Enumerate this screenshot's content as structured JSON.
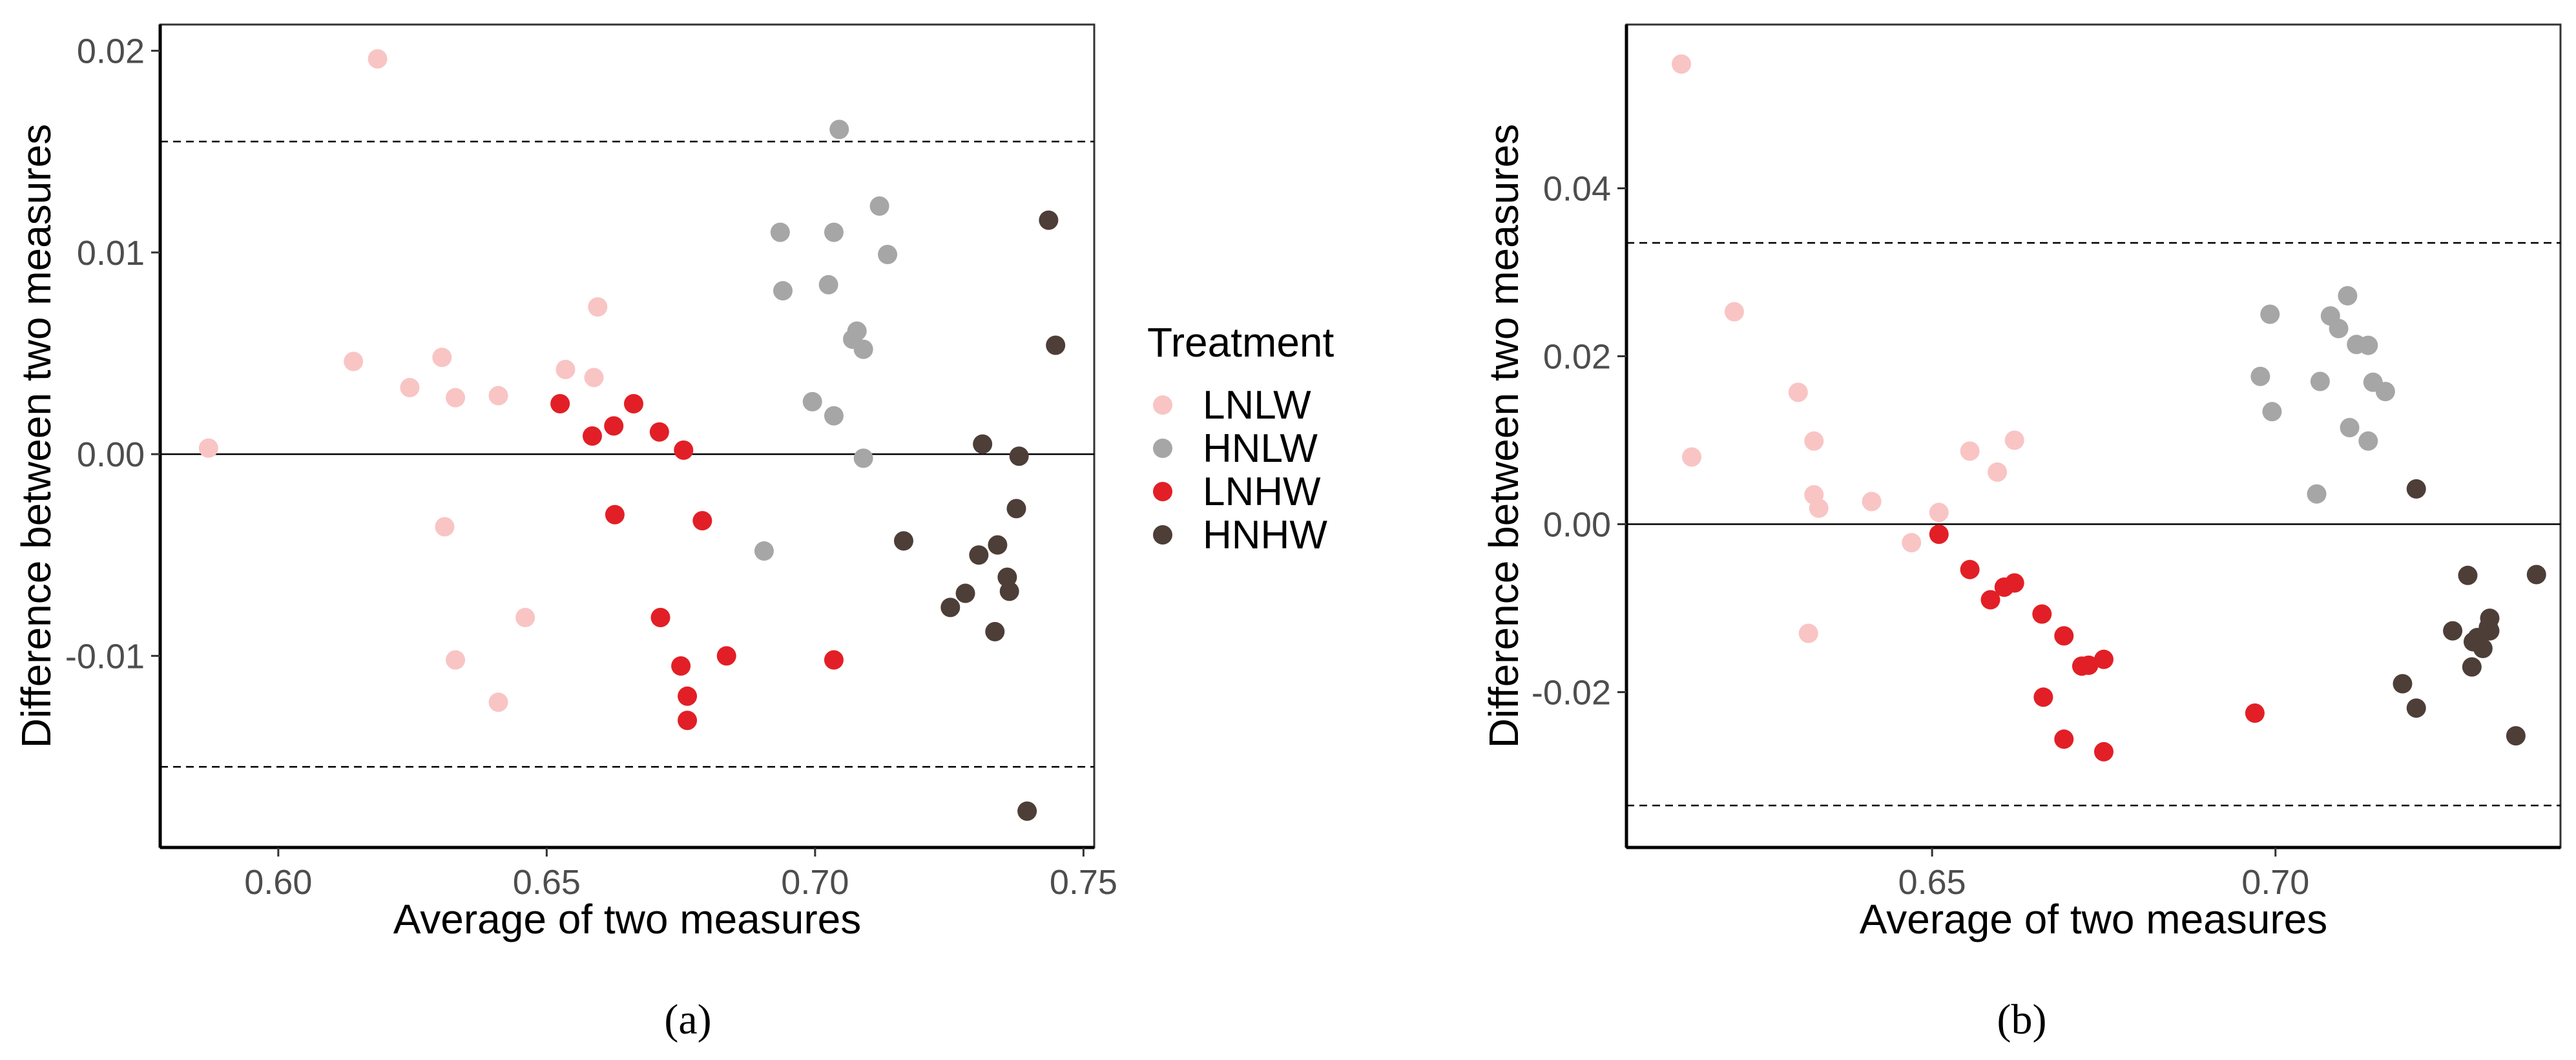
{
  "figure": {
    "legend": {
      "title": "Treatment",
      "entries": [
        {
          "label": "LNLW",
          "color": "#f8c5c4"
        },
        {
          "label": "HNLW",
          "color": "#a6a6a6"
        },
        {
          "label": "LNHW",
          "color": "#e21f26"
        },
        {
          "label": "HNHW",
          "color": "#4d3e38"
        }
      ]
    }
  },
  "chart_data": [
    {
      "type": "scatter",
      "panel_label": "(a)",
      "xlabel": "Average of two measures",
      "ylabel": "Difference between two measures",
      "xlim": [
        0.578,
        0.752
      ],
      "ylim": [
        -0.0195,
        0.0213
      ],
      "x_ticks": [
        0.6,
        0.65,
        0.7,
        0.75
      ],
      "x_tick_labels": [
        "0.60",
        "0.65",
        "0.70",
        "0.75"
      ],
      "y_ticks": [
        -0.01,
        0.0,
        0.01,
        0.02
      ],
      "y_tick_labels": [
        "-0.01",
        "0.00",
        "0.01",
        "0.02"
      ],
      "mean_line": 0.0,
      "limits_of_agreement": [
        -0.0155,
        0.0155
      ],
      "grid": false,
      "series": [
        {
          "name": "LNLW",
          "color": "#f8c5c4",
          "points": [
            [
              0.587,
              0.0003
            ],
            [
              0.6185,
              0.0196
            ],
            [
              0.614,
              0.0046
            ],
            [
              0.6245,
              0.0033
            ],
            [
              0.6305,
              0.0048
            ],
            [
              0.633,
              0.0028
            ],
            [
              0.641,
              0.0029
            ],
            [
              0.6535,
              0.0042
            ],
            [
              0.6595,
              0.0073
            ],
            [
              0.6588,
              0.0038
            ],
            [
              0.631,
              -0.0036
            ],
            [
              0.633,
              -0.0102
            ],
            [
              0.641,
              -0.0123
            ],
            [
              0.646,
              -0.0081
            ]
          ]
        },
        {
          "name": "HNLW",
          "color": "#a6a6a6",
          "points": [
            [
              0.6935,
              0.011
            ],
            [
              0.694,
              0.0081
            ],
            [
              0.7025,
              0.0084
            ],
            [
              0.7035,
              0.011
            ],
            [
              0.7045,
              0.0161
            ],
            [
              0.712,
              0.0123
            ],
            [
              0.7135,
              0.0099
            ],
            [
              0.707,
              0.0057
            ],
            [
              0.7078,
              0.0061
            ],
            [
              0.709,
              0.0052
            ],
            [
              0.6995,
              0.0026
            ],
            [
              0.7035,
              0.0019
            ],
            [
              0.709,
              -0.0002
            ],
            [
              0.6905,
              -0.0048
            ]
          ]
        },
        {
          "name": "LNHW",
          "color": "#e21f26",
          "points": [
            [
              0.6525,
              0.0025
            ],
            [
              0.6585,
              0.0009
            ],
            [
              0.6625,
              0.0014
            ],
            [
              0.6662,
              0.0025
            ],
            [
              0.671,
              0.0011
            ],
            [
              0.6755,
              0.0002
            ],
            [
              0.6627,
              -0.003
            ],
            [
              0.679,
              -0.0033
            ],
            [
              0.6712,
              -0.0081
            ],
            [
              0.675,
              -0.0105
            ],
            [
              0.6835,
              -0.01
            ],
            [
              0.7035,
              -0.0102
            ],
            [
              0.6762,
              -0.012
            ],
            [
              0.6762,
              -0.0132
            ]
          ]
        },
        {
          "name": "HNHW",
          "color": "#4d3e38",
          "points": [
            [
              0.7435,
              0.0116
            ],
            [
              0.7448,
              0.0054
            ],
            [
              0.7312,
              0.0005
            ],
            [
              0.738,
              -0.0001
            ],
            [
              0.7375,
              -0.0027
            ],
            [
              0.7165,
              -0.0043
            ],
            [
              0.734,
              -0.0045
            ],
            [
              0.7305,
              -0.005
            ],
            [
              0.7358,
              -0.0061
            ],
            [
              0.7362,
              -0.0068
            ],
            [
              0.728,
              -0.0069
            ],
            [
              0.7252,
              -0.0076
            ],
            [
              0.7335,
              -0.0088
            ],
            [
              0.7395,
              -0.0177
            ]
          ]
        }
      ]
    },
    {
      "type": "scatter",
      "panel_label": "(b)",
      "xlabel": "Average of two measures",
      "ylabel": "Difference between two measures",
      "xlim": [
        0.6055,
        0.7415
      ],
      "ylim": [
        -0.0385,
        0.0595
      ],
      "x_ticks": [
        0.65,
        0.7
      ],
      "x_tick_labels": [
        "0.65",
        "0.70"
      ],
      "y_ticks": [
        -0.02,
        0.0,
        0.02,
        0.04
      ],
      "y_tick_labels": [
        "-0.02",
        "0.00",
        "0.02",
        "0.04"
      ],
      "mean_line": 0.0,
      "limits_of_agreement": [
        -0.0335,
        0.0335
      ],
      "grid": false,
      "series": [
        {
          "name": "LNLW",
          "color": "#f8c5c4",
          "points": [
            [
              0.6135,
              0.0548
            ],
            [
              0.6212,
              0.0253
            ],
            [
              0.615,
              0.008
            ],
            [
              0.6305,
              0.0157
            ],
            [
              0.6328,
              0.0099
            ],
            [
              0.6328,
              0.0035
            ],
            [
              0.6335,
              0.0019
            ],
            [
              0.6412,
              0.0027
            ],
            [
              0.651,
              0.0014
            ],
            [
              0.6555,
              0.0087
            ],
            [
              0.6595,
              0.0062
            ],
            [
              0.662,
              0.01
            ],
            [
              0.647,
              -0.0022
            ],
            [
              0.632,
              -0.013
            ]
          ]
        },
        {
          "name": "HNLW",
          "color": "#a6a6a6",
          "points": [
            [
              0.6992,
              0.025
            ],
            [
              0.6978,
              0.0176
            ],
            [
              0.6995,
              0.0134
            ],
            [
              0.7065,
              0.017
            ],
            [
              0.708,
              0.0248
            ],
            [
              0.7092,
              0.0233
            ],
            [
              0.7105,
              0.0272
            ],
            [
              0.7118,
              0.0214
            ],
            [
              0.7135,
              0.0213
            ],
            [
              0.7142,
              0.0169
            ],
            [
              0.716,
              0.0158
            ],
            [
              0.7108,
              0.0115
            ],
            [
              0.7135,
              0.0099
            ],
            [
              0.706,
              0.0036
            ]
          ]
        },
        {
          "name": "LNHW",
          "color": "#e21f26",
          "points": [
            [
              0.651,
              -0.0012
            ],
            [
              0.6555,
              -0.0054
            ],
            [
              0.6585,
              -0.009
            ],
            [
              0.6605,
              -0.0075
            ],
            [
              0.662,
              -0.007
            ],
            [
              0.666,
              -0.0107
            ],
            [
              0.6692,
              -0.0133
            ],
            [
              0.6718,
              -0.0169
            ],
            [
              0.6728,
              -0.0168
            ],
            [
              0.675,
              -0.0161
            ],
            [
              0.6662,
              -0.0206
            ],
            [
              0.6692,
              -0.0256
            ],
            [
              0.675,
              -0.0271
            ],
            [
              0.697,
              -0.0225
            ]
          ]
        },
        {
          "name": "HNHW",
          "color": "#4d3e38",
          "points": [
            [
              0.7205,
              0.0042
            ],
            [
              0.728,
              -0.0061
            ],
            [
              0.738,
              -0.006
            ],
            [
              0.7258,
              -0.0127
            ],
            [
              0.7288,
              -0.014
            ],
            [
              0.7302,
              -0.0148
            ],
            [
              0.731,
              -0.0123
            ],
            [
              0.7312,
              -0.0112
            ],
            [
              0.7286,
              -0.017
            ],
            [
              0.7185,
              -0.019
            ],
            [
              0.7205,
              -0.0219
            ],
            [
              0.735,
              -0.0252
            ],
            [
              0.7312,
              -0.0127
            ],
            [
              0.7294,
              -0.0135
            ]
          ]
        }
      ]
    }
  ]
}
